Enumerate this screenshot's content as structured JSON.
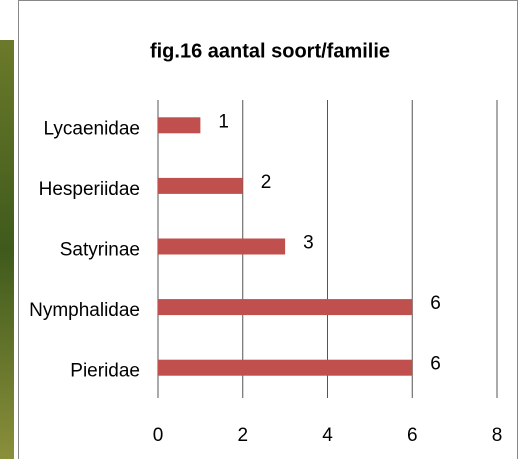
{
  "chart_data": {
    "type": "bar",
    "orientation": "horizontal",
    "title": "fig.16 aantal soort/familie",
    "categories": [
      "Lycaenidae",
      "Hesperiidae",
      "Satyrinae",
      "Nymphalidae",
      "Pieridae"
    ],
    "values": [
      1,
      2,
      3,
      6,
      6
    ],
    "color": "#c0504d",
    "xlim": [
      0,
      8
    ],
    "xticks": [
      0,
      2,
      4,
      6,
      8
    ],
    "grid": true
  }
}
